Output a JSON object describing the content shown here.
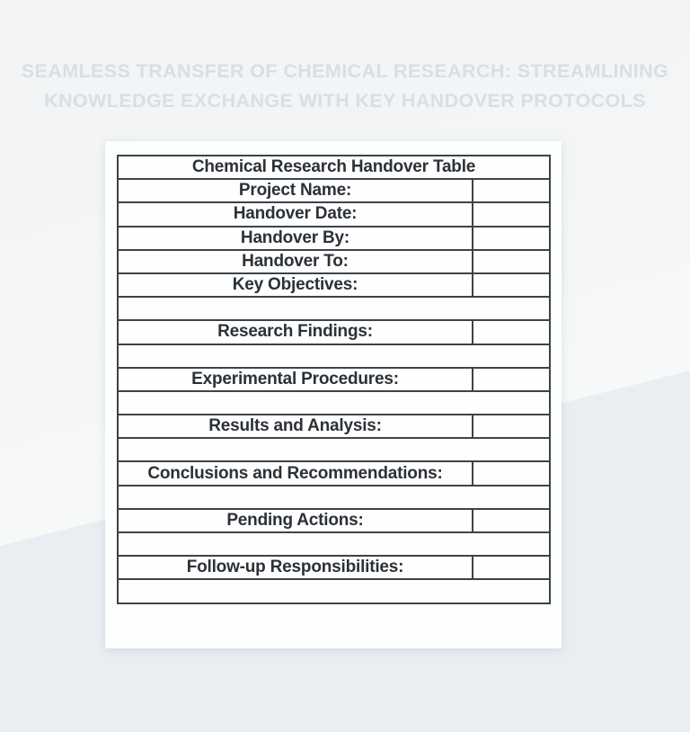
{
  "heading": {
    "line1": "SEAMLESS TRANSFER OF CHEMICAL RESEARCH: STREAMLINING",
    "line2": "KNOWLEDGE EXCHANGE WITH KEY HANDOVER PROTOCOLS"
  },
  "table": {
    "title": "Chemical Research Handover Table",
    "rows": [
      {
        "type": "field",
        "label": "Project Name:",
        "value": ""
      },
      {
        "type": "field",
        "label": "Handover Date:",
        "value": ""
      },
      {
        "type": "field",
        "label": "Handover By:",
        "value": ""
      },
      {
        "type": "field",
        "label": "Handover To:",
        "value": ""
      },
      {
        "type": "field",
        "label": "Key Objectives:",
        "value": ""
      },
      {
        "type": "spacer",
        "label": ""
      },
      {
        "type": "field",
        "label": "Research Findings:",
        "value": ""
      },
      {
        "type": "spacer",
        "label": ""
      },
      {
        "type": "field",
        "label": "Experimental Procedures:",
        "value": ""
      },
      {
        "type": "spacer",
        "label": ""
      },
      {
        "type": "field",
        "label": "Results and Analysis:",
        "value": ""
      },
      {
        "type": "spacer",
        "label": ""
      },
      {
        "type": "field",
        "label": "Conclusions and Recommendations:",
        "value": ""
      },
      {
        "type": "spacer",
        "label": ""
      },
      {
        "type": "field",
        "label": "Pending Actions:",
        "value": ""
      },
      {
        "type": "spacer",
        "label": ""
      },
      {
        "type": "field",
        "label": "Follow-up Responsibilities:",
        "value": ""
      },
      {
        "type": "spacer",
        "label": ""
      }
    ]
  },
  "colors": {
    "page_bg_upper": "#f3f5f6",
    "page_bg_lower": "#e9eef2",
    "card_bg": "#fdfefe",
    "table_header_bg": "#ccd6dd",
    "table_border": "#3c434a",
    "table_text": "#2b3137",
    "heading_text": "#d8dfe4"
  }
}
